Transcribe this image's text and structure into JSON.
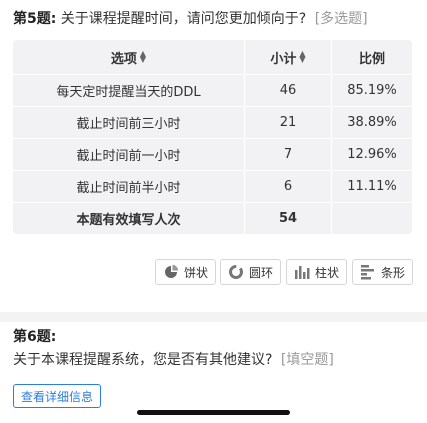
{
  "question5": {
    "number": "第5题:",
    "text": "关于课程提醒时间，请问您更加倾向于?",
    "type": "[多选题]"
  },
  "table": {
    "headers": {
      "option": "选项",
      "count": "小计",
      "ratio": "比例"
    },
    "rows": [
      {
        "option": "每天定时提醒当天的DDL",
        "count": "46",
        "ratio": "85.19%"
      },
      {
        "option": "截止时间前三小时",
        "count": "21",
        "ratio": "38.89%"
      },
      {
        "option": "截止时间前一小时",
        "count": "7",
        "ratio": "12.96%"
      },
      {
        "option": "截止时间前半小时",
        "count": "6",
        "ratio": "11.11%"
      }
    ],
    "total": {
      "label": "本题有效填写人次",
      "count": "54"
    }
  },
  "chart_buttons": [
    {
      "label": "饼状",
      "icon": "pie-chart-icon"
    },
    {
      "label": "圆环",
      "icon": "donut-chart-icon"
    },
    {
      "label": "柱状",
      "icon": "bar-chart-icon"
    },
    {
      "label": "条形",
      "icon": "horizontal-bar-chart-icon"
    }
  ],
  "question6": {
    "number": "第6题:",
    "text": "关于本课程提醒系统，您是否有其他建议?",
    "type": "[填空题]"
  },
  "detail_button": {
    "label": "查看详细信息"
  },
  "colors": {
    "accent": "#2b7de0",
    "table_bg": "#f2f2f4",
    "muted": "#999999"
  }
}
